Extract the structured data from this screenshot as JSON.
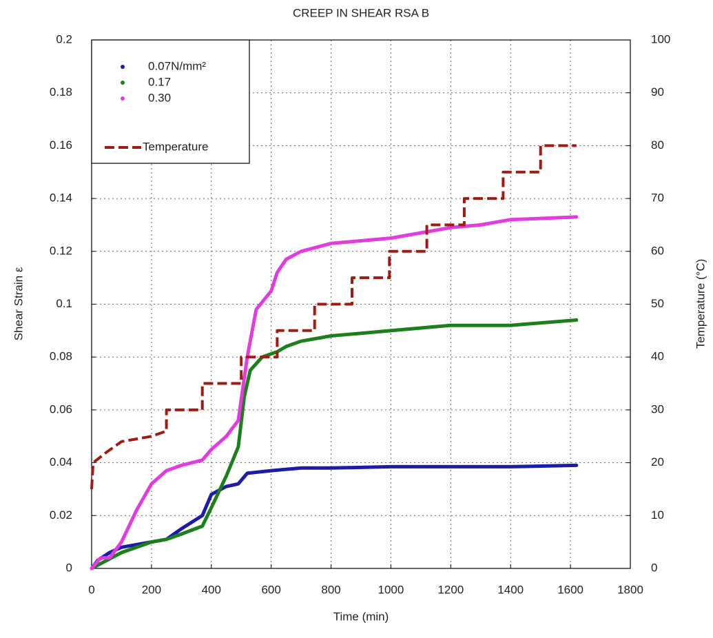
{
  "chart_data": {
    "type": "line",
    "title": "CREEP IN SHEAR RSA B",
    "xlabel": "Time (min)",
    "ylabel": "Shear Strain ε",
    "y2label": "Temperature (°C)",
    "xlim": [
      0,
      1800
    ],
    "xticks": [
      0,
      200,
      400,
      600,
      800,
      1000,
      1200,
      1400,
      1600,
      1800
    ],
    "ylim": [
      0,
      0.2
    ],
    "yticks": [
      0,
      0.02,
      0.04,
      0.06,
      0.08,
      0.1,
      0.12,
      0.14,
      0.16,
      0.18,
      0.2
    ],
    "y2lim": [
      0,
      100
    ],
    "y2ticks": [
      0,
      10,
      20,
      30,
      40,
      50,
      60,
      70,
      80,
      90,
      100
    ],
    "grid": true,
    "legend": "upper left",
    "series": [
      {
        "name": "0.07N/mm²",
        "color": "#1c1ca8",
        "style": "marker",
        "x": [
          0,
          20,
          60,
          100,
          150,
          200,
          250,
          300,
          370,
          400,
          450,
          490,
          520,
          600,
          700,
          800,
          1000,
          1200,
          1400,
          1620
        ],
        "values": [
          0,
          0.003,
          0.006,
          0.008,
          0.009,
          0.01,
          0.011,
          0.015,
          0.02,
          0.028,
          0.031,
          0.032,
          0.036,
          0.037,
          0.038,
          0.038,
          0.0385,
          0.0385,
          0.0385,
          0.039
        ]
      },
      {
        "name": "0.17",
        "color": "#1b7f1b",
        "style": "marker",
        "x": [
          0,
          50,
          100,
          200,
          250,
          300,
          370,
          400,
          450,
          490,
          510,
          530,
          570,
          620,
          650,
          700,
          800,
          900,
          1000,
          1200,
          1400,
          1620
        ],
        "values": [
          0,
          0.003,
          0.006,
          0.01,
          0.011,
          0.013,
          0.016,
          0.023,
          0.035,
          0.046,
          0.065,
          0.075,
          0.08,
          0.082,
          0.084,
          0.086,
          0.088,
          0.089,
          0.09,
          0.092,
          0.092,
          0.094
        ]
      },
      {
        "name": "0.30",
        "color": "#e03ce0",
        "style": "marker",
        "x": [
          0,
          30,
          60,
          100,
          150,
          200,
          250,
          300,
          370,
          400,
          450,
          490,
          520,
          550,
          600,
          620,
          650,
          700,
          800,
          900,
          1000,
          1100,
          1200,
          1300,
          1400,
          1620
        ],
        "values": [
          0,
          0.004,
          0.004,
          0.01,
          0.022,
          0.032,
          0.037,
          0.039,
          0.041,
          0.045,
          0.05,
          0.056,
          0.08,
          0.098,
          0.105,
          0.112,
          0.117,
          0.12,
          0.123,
          0.124,
          0.125,
          0.127,
          0.129,
          0.13,
          0.132,
          0.133
        ]
      },
      {
        "name": "Temperature",
        "color": "#a01c12",
        "style": "dashed",
        "axis": "y2",
        "x": [
          0,
          5,
          50,
          100,
          200,
          250,
          250,
          370,
          370,
          500,
          500,
          620,
          620,
          745,
          745,
          870,
          870,
          995,
          995,
          1120,
          1120,
          1245,
          1245,
          1375,
          1375,
          1500,
          1500,
          1620
        ],
        "values": [
          15,
          20,
          22,
          24,
          25,
          26,
          30,
          30,
          35,
          35,
          40,
          40,
          45,
          45,
          50,
          50,
          55,
          55,
          60,
          60,
          65,
          65,
          70,
          70,
          75,
          75,
          80,
          80
        ]
      }
    ]
  }
}
